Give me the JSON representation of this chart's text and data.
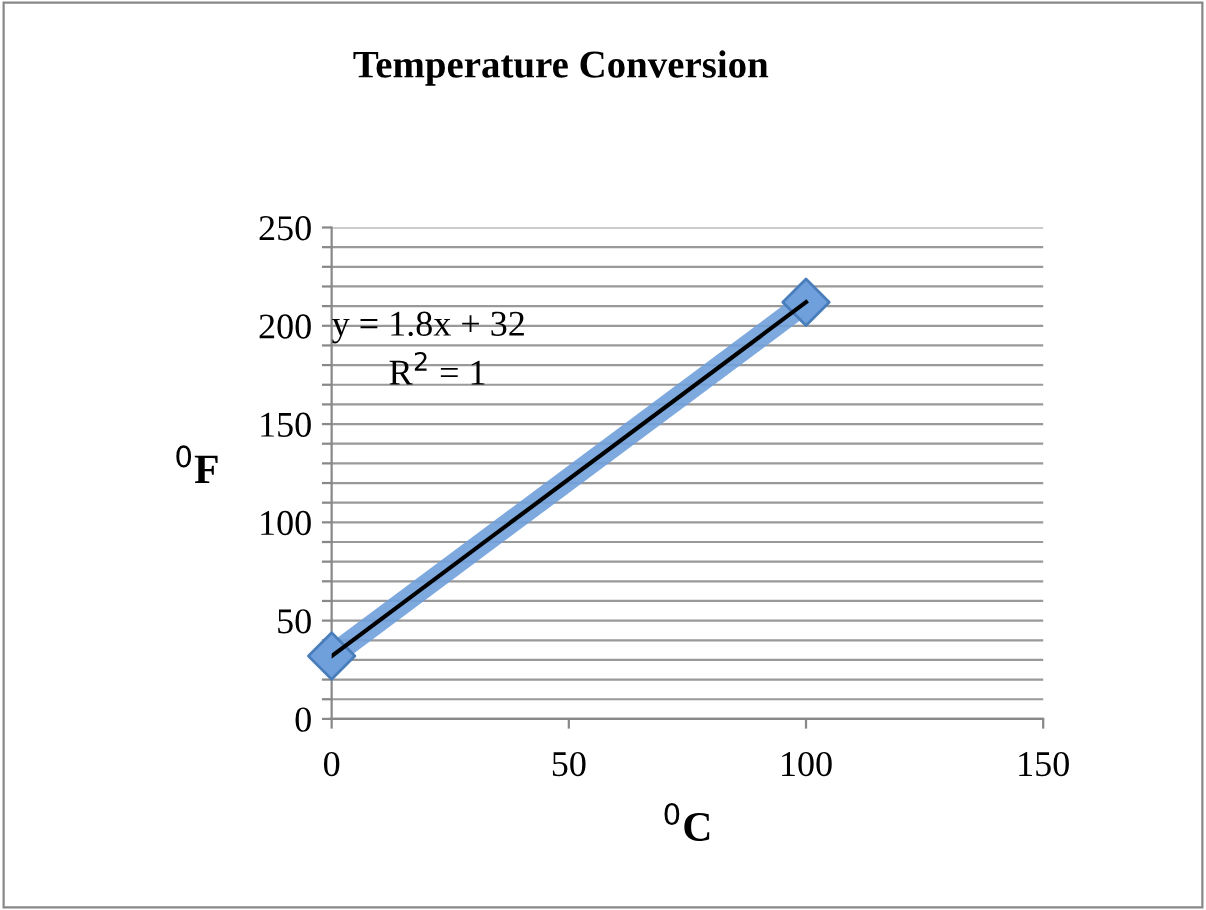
{
  "chart_data": {
    "type": "scatter",
    "title": "Temperature Conversion",
    "xlabel": "$^{0}$C",
    "ylabel": "$^{0}$F",
    "x": [
      0,
      100
    ],
    "series": [
      {
        "color": "#6fa0dc",
        "values": [
          32,
          212
        ],
        "marker": "diamond",
        "line_style": "solid"
      },
      {
        "type": "line",
        "color": "#000000",
        "x": [
          0,
          100
        ],
        "values": [
          32,
          212
        ],
        "marker": "none"
      }
    ],
    "annotations": [
      "y = 1.8x + 32",
      "R$^{2}$ = 1"
    ],
    "xlim": [
      0,
      150
    ],
    "xticks": [
      0,
      50,
      100,
      150
    ],
    "ylim": [
      0,
      250
    ],
    "yticks": [
      0,
      {
        "value": 10,
        "label": null
      },
      {
        "value": 20,
        "label": null
      },
      {
        "value": 30,
        "label": null
      },
      {
        "value": 40,
        "label": null
      },
      50,
      {
        "value": 60,
        "label": null
      },
      {
        "value": 70,
        "label": null
      },
      {
        "value": 80,
        "label": null
      },
      {
        "value": 90,
        "label": null
      },
      100,
      {
        "value": 110,
        "label": null
      },
      {
        "value": 120,
        "label": null
      },
      {
        "value": 130,
        "label": null
      },
      {
        "value": 140,
        "label": null
      },
      150,
      {
        "value": 160,
        "label": null
      },
      {
        "value": 170,
        "label": null
      },
      {
        "value": 180,
        "label": null
      },
      {
        "value": 190,
        "label": null
      },
      200,
      {
        "value": 210,
        "label": null
      },
      {
        "value": 220,
        "label": null
      },
      {
        "value": 230,
        "label": null
      },
      {
        "value": 240,
        "label": null
      },
      250
    ],
    "grid": "y",
    "legend": false
  }
}
